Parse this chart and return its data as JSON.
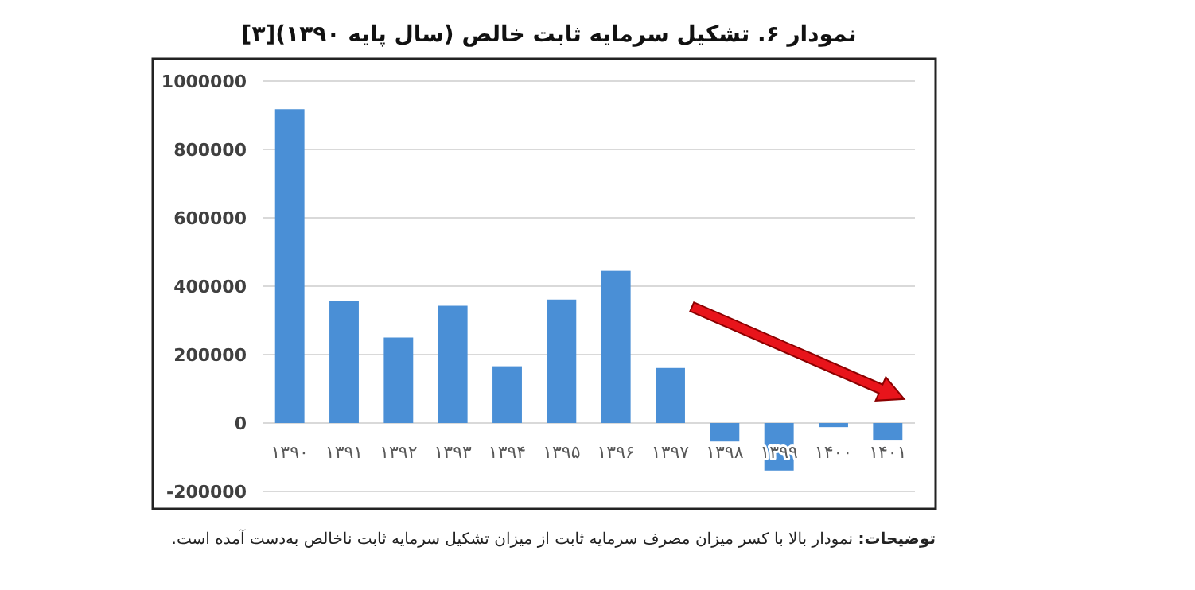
{
  "chart_data": {
    "type": "bar",
    "title": "نمودار ۶. تشکیل سرمایه ثابت خالص (سال پایه ۱۳۹۰)[۳]",
    "categories": [
      "۱۳۹۰",
      "۱۳۹۱",
      "۱۳۹۲",
      "۱۳۹۳",
      "۱۳۹۴",
      "۱۳۹۵",
      "۱۳۹۶",
      "۱۳۹۷",
      "۱۳۹۸",
      "۱۳۹۹",
      "۱۴۰۰",
      "۱۴۰۱"
    ],
    "values": [
      918000,
      357000,
      250000,
      343000,
      166000,
      361000,
      445000,
      161000,
      -54000,
      -139000,
      -12000,
      -49000
    ],
    "color": "#4a8fd6",
    "ylim": [
      -200000,
      1000000
    ],
    "yticks": [
      -200000,
      0,
      200000,
      400000,
      600000,
      800000,
      1000000
    ],
    "grid": "y",
    "annotations": [
      "توضیحات: نمودار بالا با کسر میزان مصرف سرمایه ثابت از میزان تشکیل سرمایه ثابت ناخالص به‌دست آمده است."
    ]
  }
}
